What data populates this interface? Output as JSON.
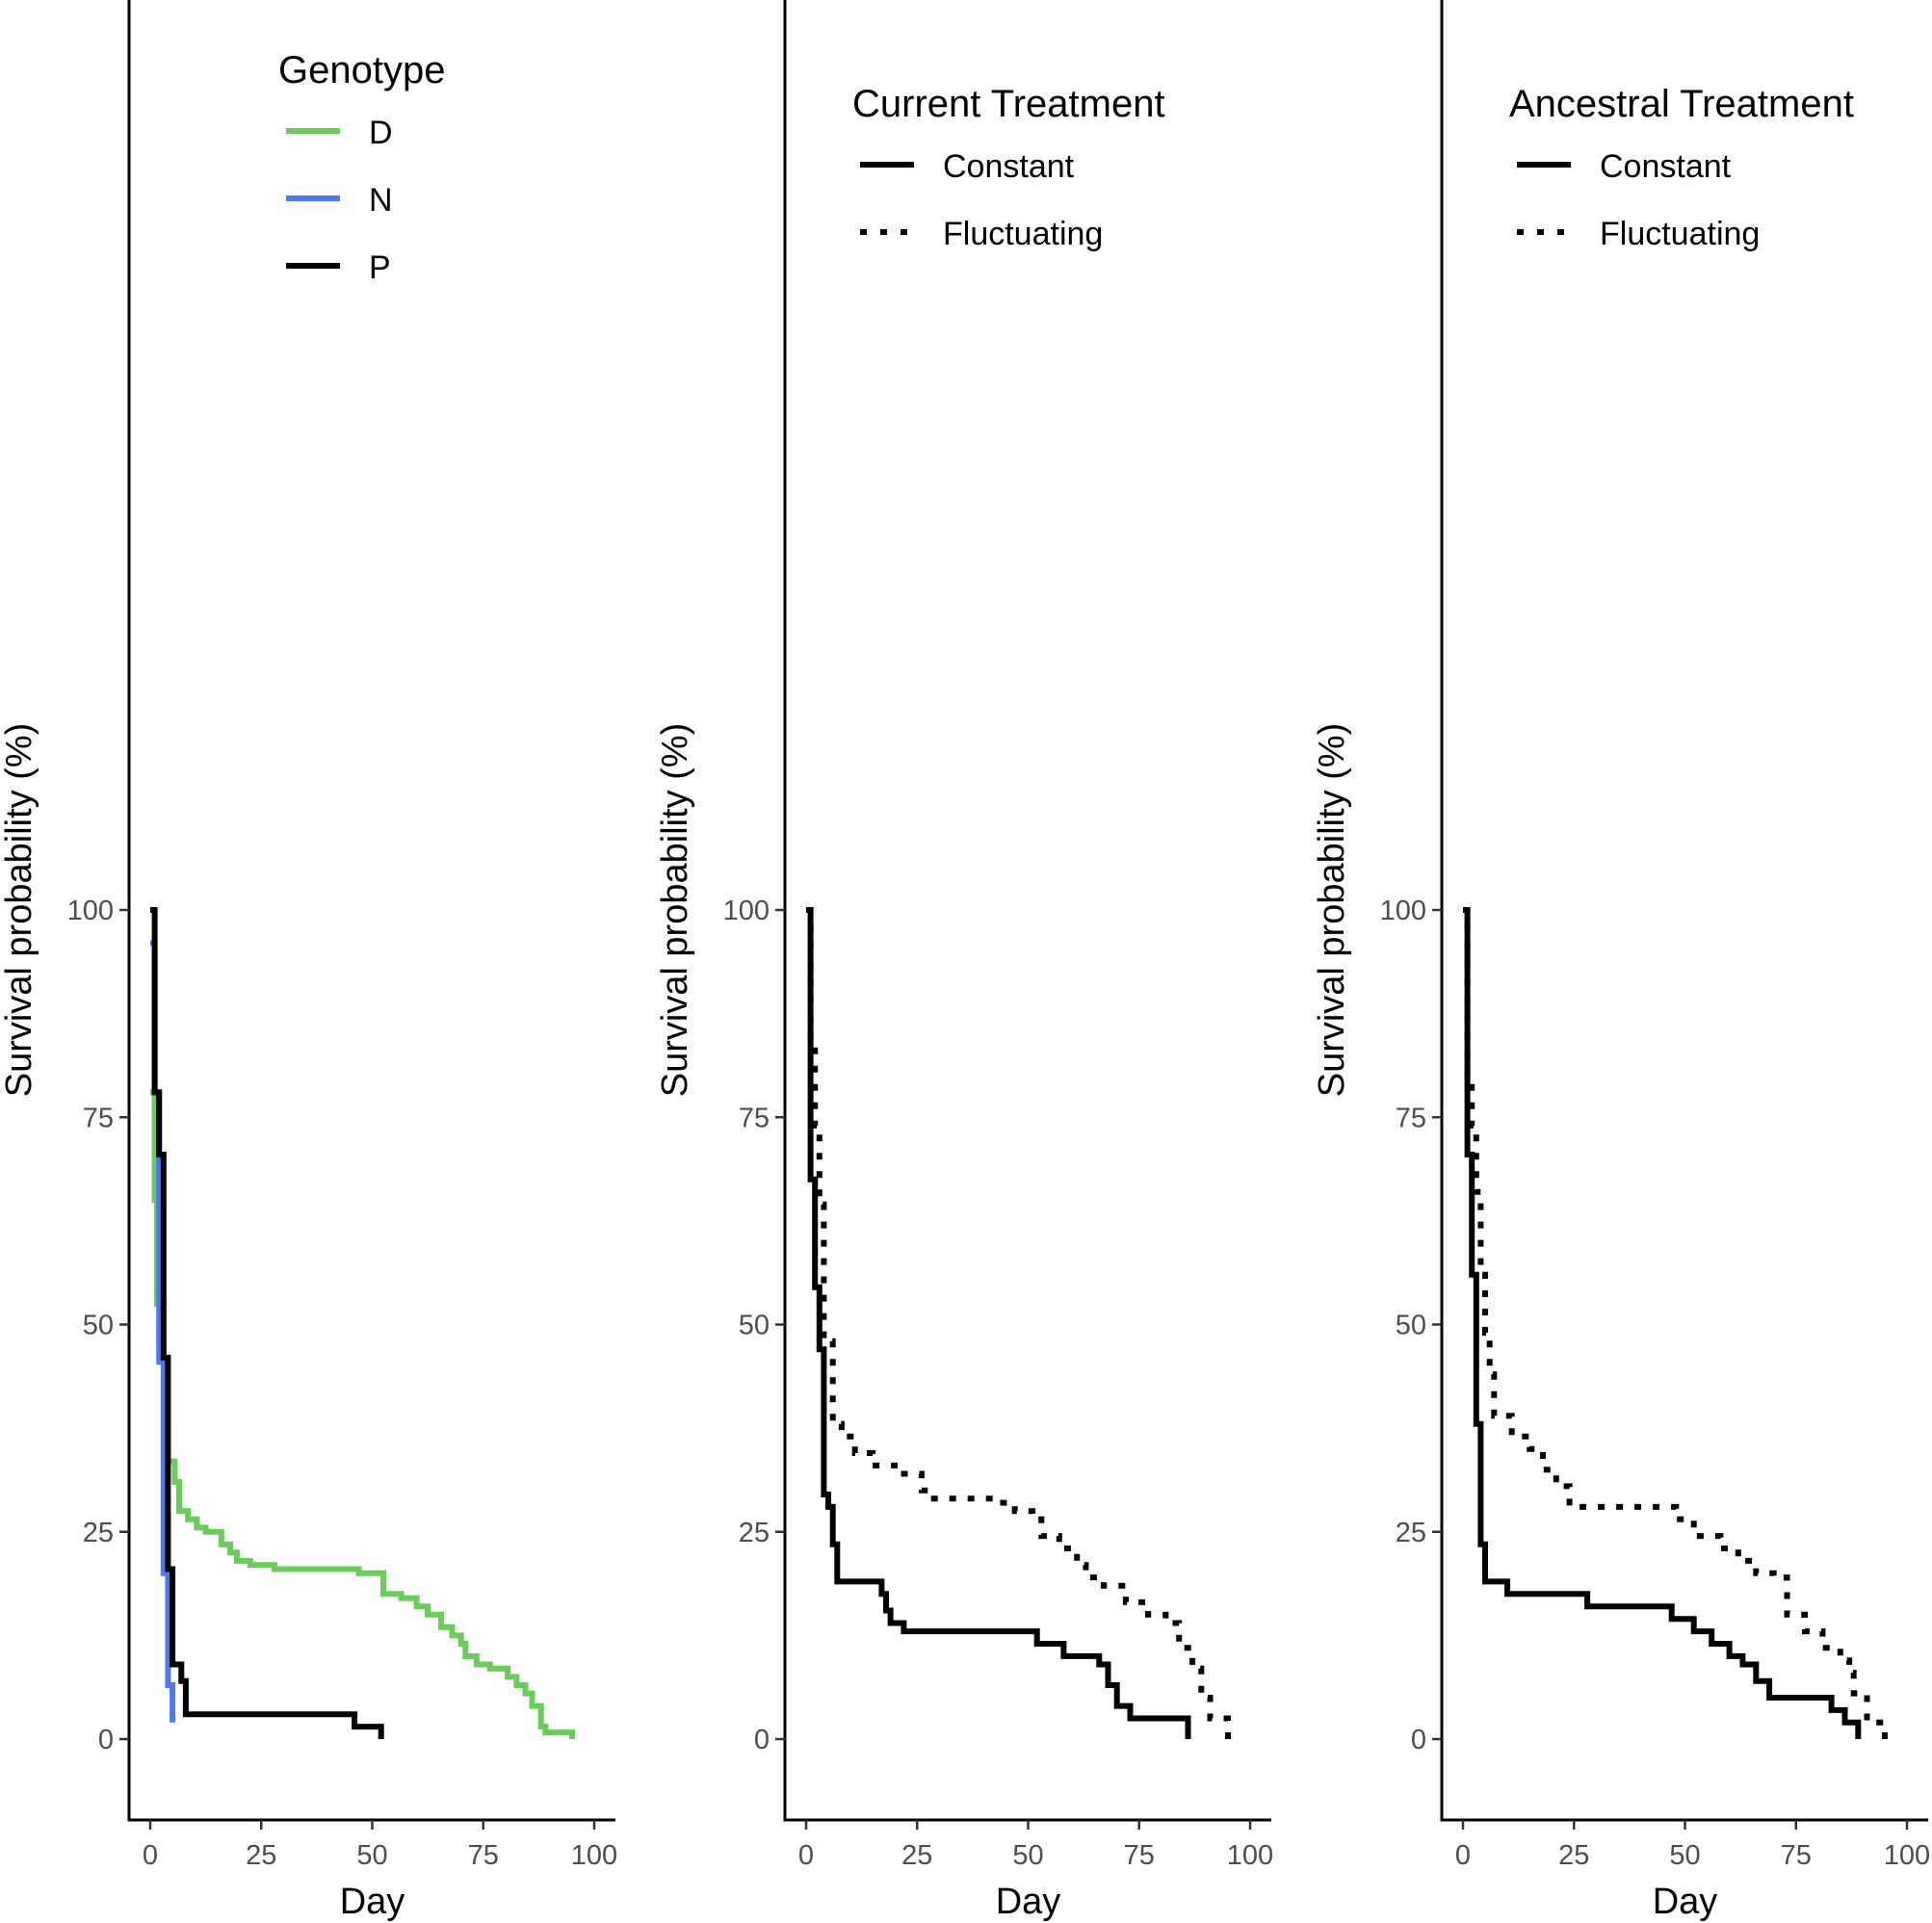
{
  "chart_data": [
    {
      "type": "line",
      "subtype": "kaplan-meier step",
      "xlabel": "Day",
      "ylabel": "Survival probability (%)",
      "xlim": [
        0,
        100
      ],
      "ylim": [
        0,
        100
      ],
      "xticks": [
        "0",
        "25",
        "50",
        "75",
        "100"
      ],
      "yticks": [
        "0",
        "25",
        "50",
        "75",
        "100"
      ],
      "grid": false,
      "legend": {
        "title": "Genotype",
        "position": "top-right",
        "entries": [
          "D",
          "N",
          "P"
        ]
      },
      "series": [
        {
          "name": "D",
          "color": "#6acc5a",
          "style": "solid",
          "x": [
            0,
            1,
            1.5,
            3,
            3.5,
            4,
            5.5,
            6.5,
            8.5,
            10.5,
            12.5,
            16,
            18,
            19.5,
            22.5,
            28,
            47,
            52.5,
            56.5,
            60,
            62.5,
            65.5,
            68,
            70,
            71,
            73.5,
            76.5,
            80.5,
            82.5,
            84.5,
            86,
            88,
            89,
            95
          ],
          "y": [
            78,
            65,
            52.5,
            46,
            38,
            33.5,
            31,
            27.5,
            26.5,
            25.5,
            25,
            23.5,
            22.5,
            21.5,
            21,
            20.5,
            20,
            17.5,
            17,
            16,
            15,
            13.5,
            12.5,
            11.5,
            10,
            9,
            8.5,
            7.5,
            6.5,
            5.5,
            4,
            1.5,
            0.8,
            0
          ]
        },
        {
          "name": "N",
          "color": "#4f79f0",
          "style": "solid",
          "x": [
            0,
            1,
            2,
            3,
            4,
            5
          ],
          "y": [
            96,
            78,
            45.5,
            20,
            6.5,
            2
          ]
        },
        {
          "name": "P",
          "color": "#000000",
          "style": "solid",
          "x": [
            0,
            1,
            2,
            3,
            4,
            5,
            7,
            8,
            46,
            52
          ],
          "y": [
            100,
            78,
            70.5,
            46,
            20.5,
            9,
            7,
            3,
            1.5,
            0
          ]
        }
      ]
    },
    {
      "type": "line",
      "subtype": "kaplan-meier step",
      "xlabel": "Day",
      "ylabel": "Survival probability (%)",
      "xlim": [
        0,
        100
      ],
      "ylim": [
        0,
        100
      ],
      "xticks": [
        "0",
        "25",
        "50",
        "75",
        "100"
      ],
      "yticks": [
        "0",
        "25",
        "50",
        "75",
        "100"
      ],
      "grid": false,
      "legend": {
        "title": "Current Treatment",
        "position": "top-right",
        "entries": [
          "Constant",
          "Fluctuating"
        ]
      },
      "series": [
        {
          "name": "Constant",
          "color": "#000000",
          "style": "solid",
          "x": [
            0,
            1,
            2,
            3,
            4,
            5,
            6,
            7,
            17,
            18,
            19,
            22,
            52,
            58,
            66,
            68,
            70,
            73,
            86
          ],
          "y": [
            100,
            67.5,
            54.5,
            47,
            29.5,
            28,
            23.5,
            19,
            17.5,
            15.5,
            14,
            13,
            11.5,
            10,
            9,
            6.5,
            4,
            2.5,
            0
          ]
        },
        {
          "name": "Fluctuating",
          "color": "#000000",
          "style": "dotted",
          "x": [
            0,
            1,
            2,
            3,
            4,
            6,
            8,
            11,
            15,
            21,
            26,
            28,
            36,
            43,
            47,
            51,
            53,
            57,
            61,
            63,
            67,
            72,
            77,
            81,
            84,
            87,
            89,
            91,
            95
          ],
          "y": [
            100,
            84,
            74,
            64.5,
            48,
            38,
            36.5,
            34.5,
            33,
            32,
            30,
            29,
            29,
            28.5,
            27.5,
            26.5,
            24.5,
            23,
            21,
            19.5,
            18.5,
            16.5,
            15,
            14,
            11,
            8.5,
            5,
            2.5,
            0
          ]
        }
      ]
    },
    {
      "type": "line",
      "subtype": "kaplan-meier step",
      "xlabel": "Day",
      "ylabel": "Survival probability (%)",
      "xlim": [
        0,
        100
      ],
      "ylim": [
        0,
        100
      ],
      "xticks": [
        "0",
        "25",
        "50",
        "75",
        "100"
      ],
      "yticks": [
        "0",
        "25",
        "50",
        "75",
        "100"
      ],
      "grid": false,
      "legend": {
        "title": "Ancestral Treatment",
        "position": "top-right",
        "entries": [
          "Constant",
          "Fluctuating"
        ]
      },
      "series": [
        {
          "name": "Constant",
          "color": "#000000",
          "style": "solid",
          "x": [
            0,
            1,
            2,
            3,
            4,
            5,
            10,
            28,
            47,
            52,
            56,
            60,
            63,
            66,
            69,
            83,
            86,
            89
          ],
          "y": [
            100,
            70.5,
            56,
            38,
            23.5,
            19,
            17.5,
            16,
            14.5,
            13,
            11.5,
            10,
            9,
            7,
            5,
            3.5,
            2,
            0
          ]
        },
        {
          "name": "Fluctuating",
          "color": "#000000",
          "style": "dotted",
          "x": [
            0,
            1,
            2,
            3,
            4,
            5,
            6,
            7,
            11,
            15,
            18,
            21,
            24,
            48,
            52,
            58,
            62,
            66,
            70,
            73,
            77,
            81,
            85,
            87,
            88,
            91,
            95
          ],
          "y": [
            100,
            80,
            74,
            66,
            56,
            49,
            44,
            39,
            36.5,
            35,
            32.5,
            30.5,
            28,
            26.5,
            24.5,
            23,
            21.5,
            20,
            19.5,
            15,
            13,
            11,
            9.5,
            8,
            5.5,
            2,
            0
          ]
        }
      ]
    }
  ]
}
